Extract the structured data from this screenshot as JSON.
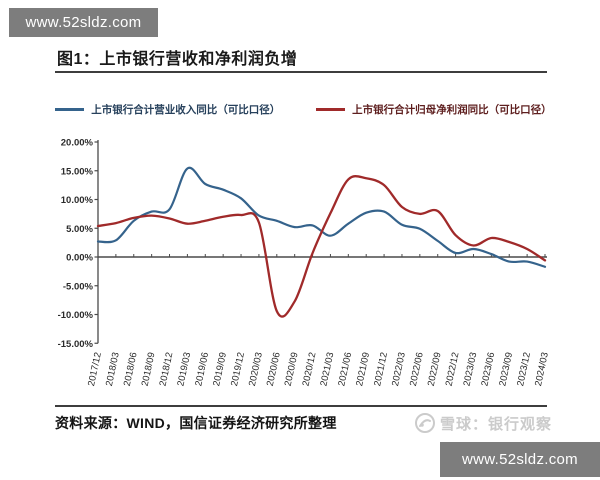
{
  "watermarks": {
    "top_left": "www.52sldz.com",
    "bottom_right": "www.52sldz.com"
  },
  "figure": {
    "title": "图1：上市银行营收和净利润负增"
  },
  "legend": [
    {
      "label": "上市银行合计营业收入同比（可比口径）",
      "color": "#35638c"
    },
    {
      "label": "上市银行合计归母净利润同比（可比口径）",
      "color": "#a02a2a"
    }
  ],
  "chart_data": {
    "type": "line",
    "categories": [
      "2017/12",
      "2018/03",
      "2018/06",
      "2018/09",
      "2018/12",
      "2019/03",
      "2019/06",
      "2019/09",
      "2019/12",
      "2020/03",
      "2020/06",
      "2020/09",
      "2020/12",
      "2021/03",
      "2021/06",
      "2021/09",
      "2021/12",
      "2022/03",
      "2022/06",
      "2022/09",
      "2022/12",
      "2023/03",
      "2023/06",
      "2023/09",
      "2023/12",
      "2024/03"
    ],
    "series": [
      {
        "name": "上市银行合计营业收入同比（可比口径）",
        "color": "#35638c",
        "values": [
          2.7,
          2.9,
          6.3,
          7.9,
          8.3,
          15.4,
          12.7,
          11.7,
          10.2,
          7.2,
          6.3,
          5.2,
          5.5,
          3.7,
          5.8,
          7.7,
          7.9,
          5.6,
          4.9,
          2.8,
          0.7,
          1.4,
          0.5,
          -0.8,
          -0.8,
          -1.7
        ]
      },
      {
        "name": "上市银行合计归母净利润同比（可比口径）",
        "color": "#a02a2a",
        "values": [
          5.4,
          5.9,
          6.8,
          7.2,
          6.7,
          5.8,
          6.3,
          7.0,
          7.3,
          6.0,
          -9.4,
          -7.7,
          0.7,
          7.6,
          13.5,
          13.7,
          12.5,
          8.7,
          7.5,
          8.0,
          3.8,
          2.0,
          3.3,
          2.6,
          1.4,
          -0.6
        ]
      }
    ],
    "title": "上市银行营收和净利润负增",
    "xlabel": "",
    "ylabel": "",
    "ylim": [
      -15,
      20
    ],
    "y_ticks": [
      20,
      15,
      10,
      5,
      0,
      -5,
      -10,
      -15
    ],
    "y_tick_format": "percent-2dp",
    "grid": false,
    "legend_position": "top",
    "axis_color": "#4a4a4a"
  },
  "source": {
    "text": "资料来源：WIND，国信证券经济研究所整理"
  },
  "logo": {
    "icon": "xueqiu-circle-icon",
    "text": "雪球：银行观察"
  }
}
